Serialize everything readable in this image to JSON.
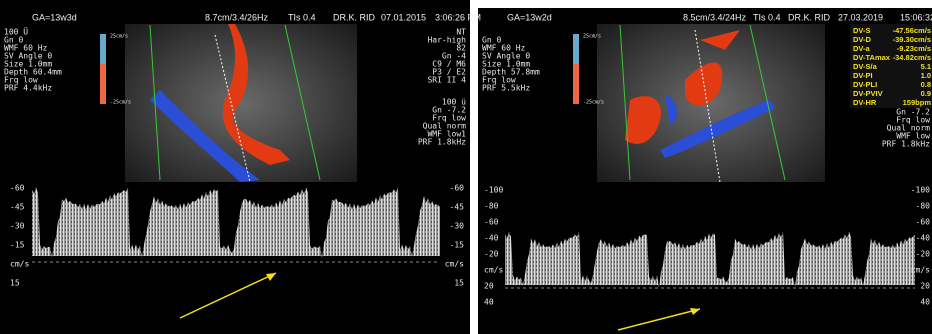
{
  "left": {
    "header": [
      "GA=13w3d",
      "8.7cm/3.4/26Hz",
      "TIs 0.4",
      "DR.K. RID",
      "07.01.2015",
      "3:06:26 PM"
    ],
    "settings": [
      "100 Ü",
      "Gn 0",
      "WMF 60 Hz",
      "SV Angle 0",
      "Size 1.0mm",
      "Depth 60.4mm",
      "Frq low",
      "PRF 4.4kHz"
    ],
    "image_settings": [
      "NT",
      "Har-high",
      "82",
      "Gn -4",
      "C9 / M6",
      "P3 / E2",
      "SRI II 4"
    ],
    "doppler_settings": [
      "100 ü",
      "Gn -7.2",
      "Frq low",
      "Qual norm",
      "WMF low1",
      "PRF 1.8kHz"
    ],
    "color_scale": [
      "25cm/s",
      "-25cm/s"
    ],
    "scale": [
      "-60",
      "-45",
      "-30",
      "-15",
      "cm/s",
      "15"
    ]
  },
  "right": {
    "header": [
      "GA=13w2d",
      "8.5cm/3.4/24Hz",
      "TIs 0.4",
      "DR.K. RID",
      "27.03.2019",
      "15:06:32"
    ],
    "settings": [
      "Gn 0",
      "WMF 60 Hz",
      "SV Angle 0",
      "Size 1.0mm",
      "Depth 57.8mm",
      "Frq low",
      "PRF 5.5kHz"
    ],
    "doppler_settings": [
      "Gn -7.2",
      "Frq low",
      "Qual norm",
      "WMF low",
      "PRF 1.8kHz"
    ],
    "color_scale": [
      "25cm/s",
      "-25cm/s"
    ],
    "measurements": [
      [
        "DV-S",
        "-47.56cm/s"
      ],
      [
        "DV-D",
        "-39.30cm/s"
      ],
      [
        "DV-a",
        "-9.23cm/s"
      ],
      [
        "DV-TAmax",
        "-34.82cm/s"
      ],
      [
        "DV-S/a",
        "5.1"
      ],
      [
        "DV-PI",
        "1.0"
      ],
      [
        "DV-PLI",
        "0.8"
      ],
      [
        "DV-PVIV",
        "0.9"
      ],
      [
        "DV-HR",
        "159bpm"
      ]
    ],
    "scale": [
      "-100",
      "-80",
      "-60",
      "-40",
      "-20",
      "cm/s",
      "20",
      "40"
    ]
  }
}
